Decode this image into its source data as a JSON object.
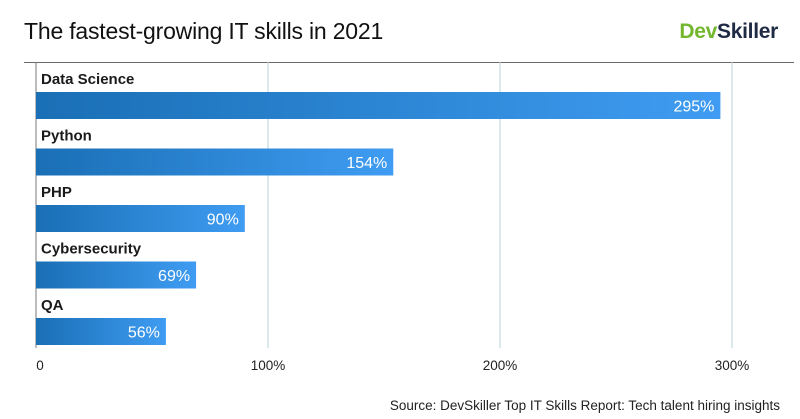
{
  "title": "The fastest-growing IT skills in 2021",
  "logo": {
    "part1": "Dev",
    "part2": "Skiller"
  },
  "source": "Source: DevSkiller Top IT Skills Report: Tech talent hiring insights",
  "colors": {
    "bar_start": "#1a6fb5",
    "bar_end": "#3f9cf2",
    "grid": "#b9d2d8",
    "logo_green": "#74b72e",
    "logo_navy": "#1f2a44"
  },
  "chart_data": {
    "type": "bar",
    "orientation": "horizontal",
    "title": "The fastest-growing IT skills in 2021",
    "categories": [
      "Data Science",
      "Python",
      "PHP",
      "Cybersecurity",
      "QA"
    ],
    "values": [
      295,
      154,
      90,
      69,
      56
    ],
    "value_labels": [
      "295%",
      "154%",
      "90%",
      "69%",
      "56%"
    ],
    "xlim": [
      0,
      300
    ],
    "xticks": [
      0,
      100,
      200,
      300
    ],
    "xtick_labels": [
      "0",
      "100%",
      "200%",
      "300%"
    ],
    "xlabel": "",
    "ylabel": "",
    "grid": true,
    "legend": false
  }
}
